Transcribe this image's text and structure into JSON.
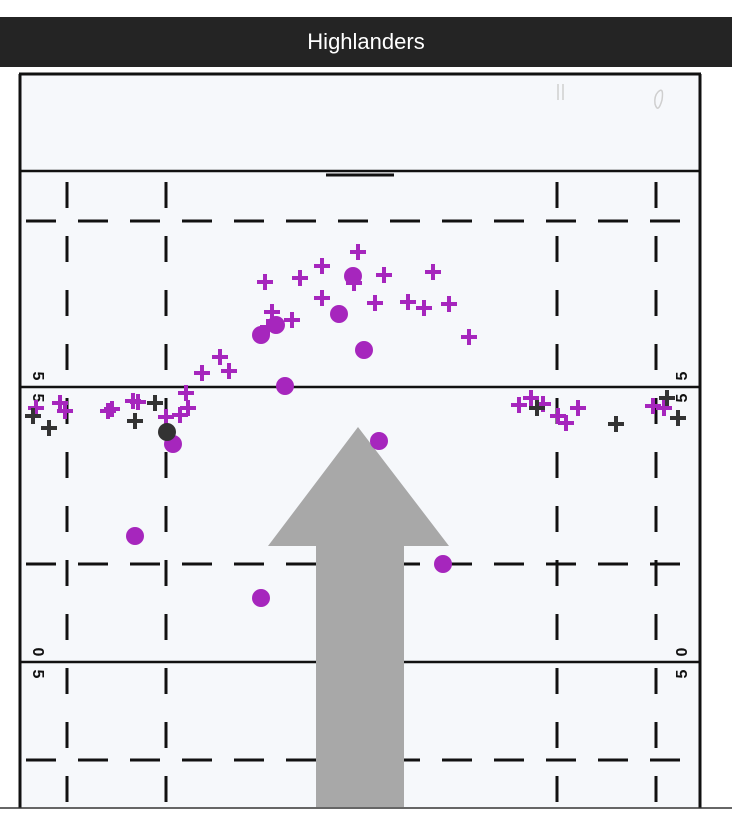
{
  "header": {
    "title": "Highlanders"
  },
  "field": {
    "yard_label_upper": "5",
    "yard_label_lower": "0",
    "attack_direction": "up"
  },
  "colors": {
    "header_bg": "#242424",
    "field_bg": "#f6f8fb",
    "lines": "#111111",
    "team_primary": "#a626bd",
    "team_secondary": "#333333",
    "arrow": "#a8a8a8"
  },
  "chart_data": {
    "type": "scatter",
    "title": "Highlanders",
    "series": [
      {
        "marker": "plus",
        "color": "#a626bd",
        "points": [
          [
            358,
            252
          ],
          [
            265,
            282
          ],
          [
            300,
            278
          ],
          [
            322,
            266
          ],
          [
            354,
            283
          ],
          [
            384,
            275
          ],
          [
            433,
            272
          ],
          [
            322,
            298
          ],
          [
            375,
            303
          ],
          [
            408,
            302
          ],
          [
            424,
            308
          ],
          [
            449,
            304
          ],
          [
            272,
            312
          ],
          [
            292,
            320
          ],
          [
            268,
            327
          ],
          [
            469,
            337
          ],
          [
            220,
            357
          ],
          [
            202,
            373
          ],
          [
            229,
            371
          ],
          [
            186,
            393
          ],
          [
            36,
            408
          ],
          [
            60,
            403
          ],
          [
            65,
            411
          ],
          [
            108,
            411
          ],
          [
            112,
            409
          ],
          [
            133,
            401
          ],
          [
            138,
            402
          ],
          [
            188,
            408
          ],
          [
            180,
            415
          ],
          [
            166,
            417
          ],
          [
            519,
            405
          ],
          [
            531,
            398
          ],
          [
            543,
            404
          ],
          [
            558,
            416
          ],
          [
            566,
            423
          ],
          [
            578,
            408
          ],
          [
            653,
            406
          ],
          [
            664,
            408
          ]
        ]
      },
      {
        "marker": "plus",
        "color": "#333333",
        "points": [
          [
            33,
            416
          ],
          [
            49,
            428
          ],
          [
            135,
            421
          ],
          [
            155,
            403
          ],
          [
            537,
            408
          ],
          [
            616,
            424
          ],
          [
            667,
            398
          ],
          [
            678,
            418
          ]
        ]
      },
      {
        "marker": "dot",
        "color": "#a626bd",
        "points": [
          [
            353,
            276
          ],
          [
            339,
            314
          ],
          [
            276,
            325
          ],
          [
            261,
            335
          ],
          [
            364,
            350
          ],
          [
            285,
            386
          ],
          [
            173,
            444
          ],
          [
            379,
            441
          ],
          [
            135,
            536
          ],
          [
            443,
            564
          ],
          [
            261,
            598
          ]
        ]
      },
      {
        "marker": "dot",
        "color": "#333333",
        "points": [
          [
            167,
            432
          ]
        ]
      }
    ]
  }
}
